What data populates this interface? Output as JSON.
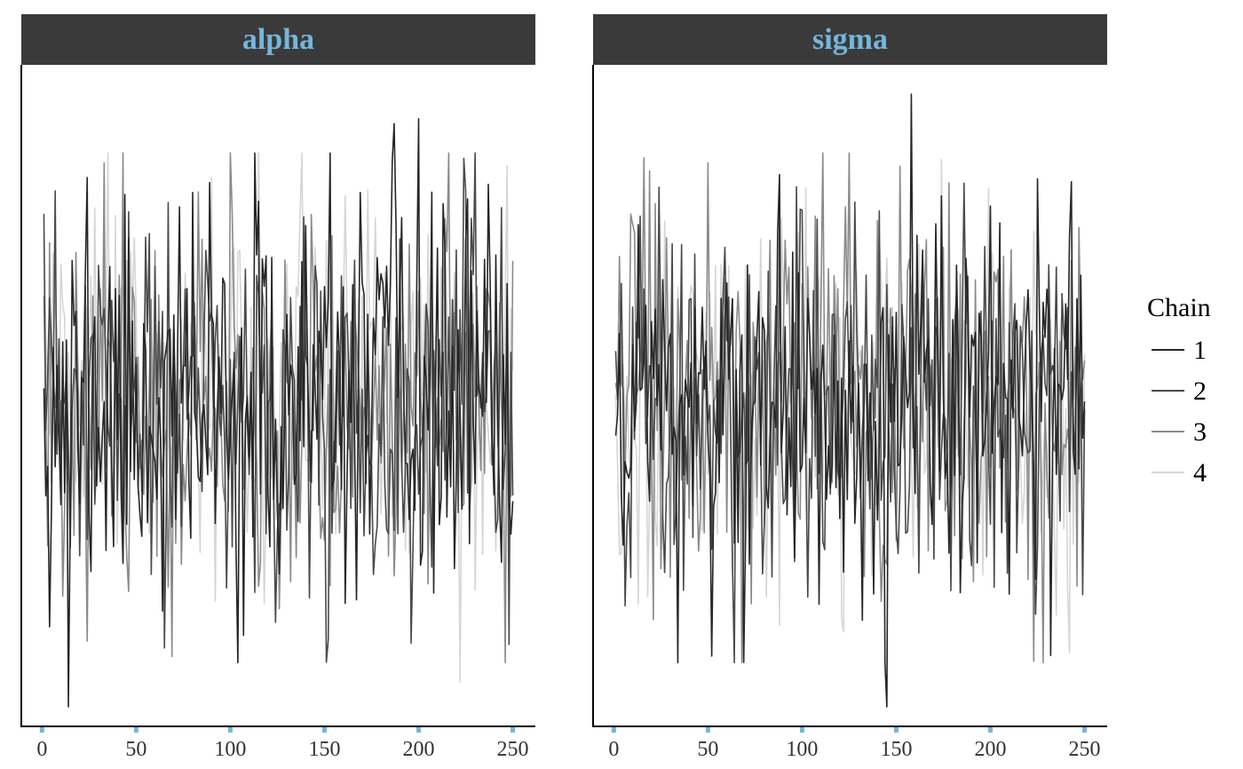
{
  "legend": {
    "title": "Chain",
    "items": [
      {
        "label": "1",
        "color": "#262626"
      },
      {
        "label": "2",
        "color": "#4a4a4a"
      },
      {
        "label": "3",
        "color": "#8a8a8a"
      },
      {
        "label": "4",
        "color": "#d6d6d6"
      }
    ]
  },
  "colors": {
    "header_bg": "#3a3a3a",
    "header_text": "#74b6dc",
    "tick_mark": "#74b6dc"
  },
  "chart_data": [
    {
      "type": "line",
      "title": "alpha",
      "xlabel": "",
      "ylabel": "",
      "xlim": [
        -11,
        262
      ],
      "ylim": [
        -3.25,
        3.5
      ],
      "x_ticks": [
        0,
        50,
        100,
        150,
        200,
        250
      ],
      "y_ticks": [],
      "grid": false,
      "series": [
        {
          "name": "1",
          "generator": "trace",
          "seed": 11,
          "n": 250,
          "mean": 0.0,
          "sd": 1.0,
          "rho": 0.05,
          "points": [
            [
              1,
              0.2
            ],
            [
              14,
              -3.05
            ],
            [
              24,
              2.35
            ],
            [
              113,
              2.6
            ],
            [
              187,
              2.9
            ],
            [
              200,
              2.95
            ]
          ]
        },
        {
          "name": "2",
          "generator": "trace",
          "seed": 23,
          "n": 250,
          "mean": 0.0,
          "sd": 1.0,
          "rho": 0.05,
          "points": [
            [
              65,
              -2.45
            ],
            [
              196,
              -2.4
            ]
          ]
        },
        {
          "name": "3",
          "generator": "trace",
          "seed": 37,
          "n": 250,
          "mean": 0.05,
          "sd": 0.95,
          "rho": 0.05,
          "points": [
            [
              33,
              2.5
            ],
            [
              250,
              1.5
            ]
          ]
        },
        {
          "name": "4",
          "generator": "trace",
          "seed": 51,
          "n": 250,
          "mean": 0.2,
          "sd": 0.9,
          "rho": 0.08,
          "points": [
            [
              2,
              0.8
            ],
            [
              90,
              2.35
            ],
            [
              118,
              -2.0
            ],
            [
              222,
              -2.8
            ]
          ]
        }
      ]
    },
    {
      "type": "line",
      "title": "sigma",
      "xlabel": "",
      "ylabel": "",
      "xlim": [
        -11,
        262
      ],
      "ylim": [
        -3.25,
        3.5
      ],
      "x_ticks": [
        0,
        50,
        100,
        150,
        200,
        250
      ],
      "y_ticks": [],
      "grid": false,
      "series": [
        {
          "name": "1",
          "generator": "trace",
          "seed": 61,
          "n": 250,
          "mean": 0.0,
          "sd": 1.0,
          "rho": 0.05,
          "points": [
            [
              145,
              -3.05
            ],
            [
              158,
              3.2
            ]
          ]
        },
        {
          "name": "2",
          "generator": "trace",
          "seed": 73,
          "n": 250,
          "mean": 0.0,
          "sd": 1.0,
          "rho": 0.05,
          "points": [
            [
              24,
              2.25
            ],
            [
              128,
              2.1
            ]
          ]
        },
        {
          "name": "3",
          "generator": "trace",
          "seed": 89,
          "n": 250,
          "mean": 0.1,
          "sd": 1.0,
          "rho": 0.05,
          "points": [
            [
              16,
              2.55
            ],
            [
              50,
              2.5
            ]
          ]
        },
        {
          "name": "4",
          "generator": "trace",
          "seed": 97,
          "n": 250,
          "mean": -0.05,
          "sd": 0.95,
          "rho": 0.05,
          "points": [
            [
              13,
              -2.0
            ],
            [
              242,
              -2.5
            ]
          ]
        }
      ]
    }
  ]
}
